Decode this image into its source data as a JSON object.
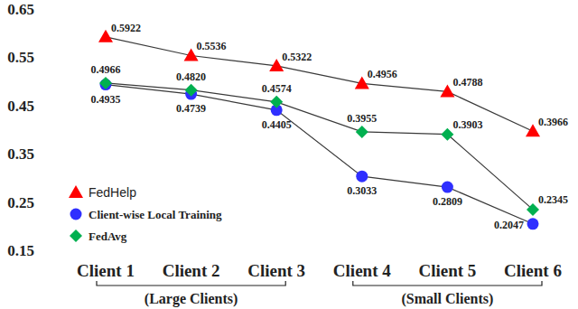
{
  "chart_data": {
    "type": "line",
    "categories": [
      "Client 1",
      "Client 2",
      "Client 3",
      "Client 4",
      "Client 5",
      "Client 6"
    ],
    "series": [
      {
        "name": "FedHelp",
        "color": "#ff0000",
        "marker": "triangle",
        "values": [
          0.5922,
          0.5536,
          0.5322,
          0.4956,
          0.4788,
          0.3966
        ],
        "value_labels": [
          "0.5922",
          "0.5536",
          "0.5322",
          "0.4956",
          "0.4788",
          "0.3966"
        ]
      },
      {
        "name": "Client-wise Local Training",
        "color": "#2f2fff",
        "marker": "circle",
        "values": [
          0.4935,
          0.4739,
          0.4405,
          0.3033,
          0.2809,
          0.2047
        ],
        "value_labels": [
          "0.4935",
          "0.4739",
          "0.4405",
          "0.3033",
          "0.2809",
          "0.2047"
        ]
      },
      {
        "name": "FedAvg",
        "color": "#00b050",
        "marker": "diamond",
        "values": [
          0.4966,
          0.482,
          0.4574,
          0.3955,
          0.3903,
          0.2345
        ],
        "value_labels": [
          "0.4966",
          "0.4820",
          "0.4574",
          "0.3955",
          "0.3903",
          "0.2345"
        ]
      }
    ],
    "groups": [
      {
        "label": "(Large Clients)",
        "members": [
          "Client 1",
          "Client 2",
          "Client 3"
        ]
      },
      {
        "label": "(Small Clients)",
        "members": [
          "Client 4",
          "Client 5",
          "Client 6"
        ]
      }
    ],
    "ylim": [
      0.15,
      0.65
    ],
    "yticks": [
      0.15,
      0.25,
      0.35,
      0.45,
      0.55,
      0.65
    ],
    "grid": false,
    "legend": "lower left",
    "data_labels": true
  }
}
